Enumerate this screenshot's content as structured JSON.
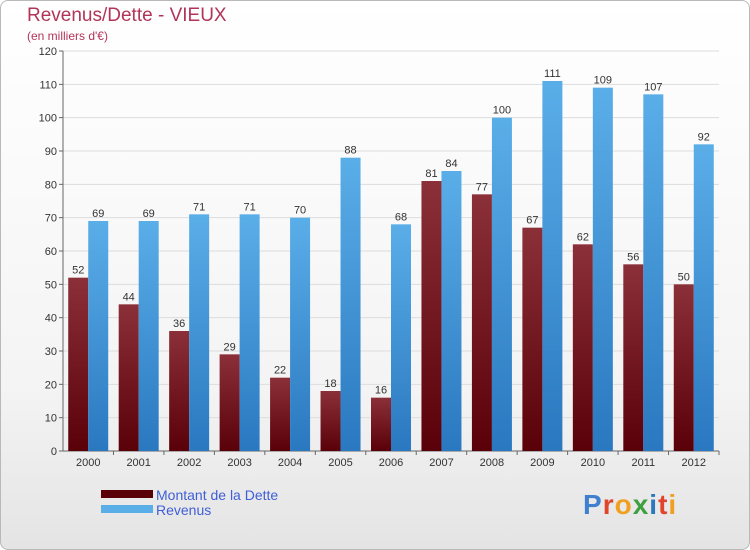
{
  "title": "Revenus/Dette - VIEUX",
  "subtitle": "(en milliers d'€)",
  "legend": {
    "dette": "Montant de la Dette",
    "revenus": "Revenus"
  },
  "logo": {
    "letters": [
      "P",
      "r",
      "o",
      "x",
      "i",
      "t",
      "i"
    ]
  },
  "colors": {
    "dette_top": "#8b3038",
    "dette_bottom": "#5a0008",
    "revenus_top": "#5aaee8",
    "revenus_bottom": "#2a78c0",
    "title": "#b2345a",
    "legend_text": "#3f5fd7"
  },
  "chart_data": {
    "type": "bar",
    "title": "Revenus/Dette - VIEUX",
    "ylabel": "(en milliers d'€)",
    "ylim": [
      0,
      120
    ],
    "yticks": [
      0,
      10,
      20,
      30,
      40,
      50,
      60,
      70,
      80,
      90,
      100,
      110,
      120
    ],
    "categories": [
      "2000",
      "2001",
      "2002",
      "2003",
      "2004",
      "2005",
      "2006",
      "2007",
      "2008",
      "2009",
      "2010",
      "2011",
      "2012"
    ],
    "series": [
      {
        "name": "Montant de la Dette",
        "values": [
          52,
          44,
          36,
          29,
          22,
          18,
          16,
          81,
          77,
          67,
          62,
          56,
          50
        ]
      },
      {
        "name": "Revenus",
        "values": [
          69,
          69,
          71,
          71,
          70,
          88,
          68,
          84,
          100,
          111,
          109,
          107,
          92
        ]
      }
    ]
  }
}
